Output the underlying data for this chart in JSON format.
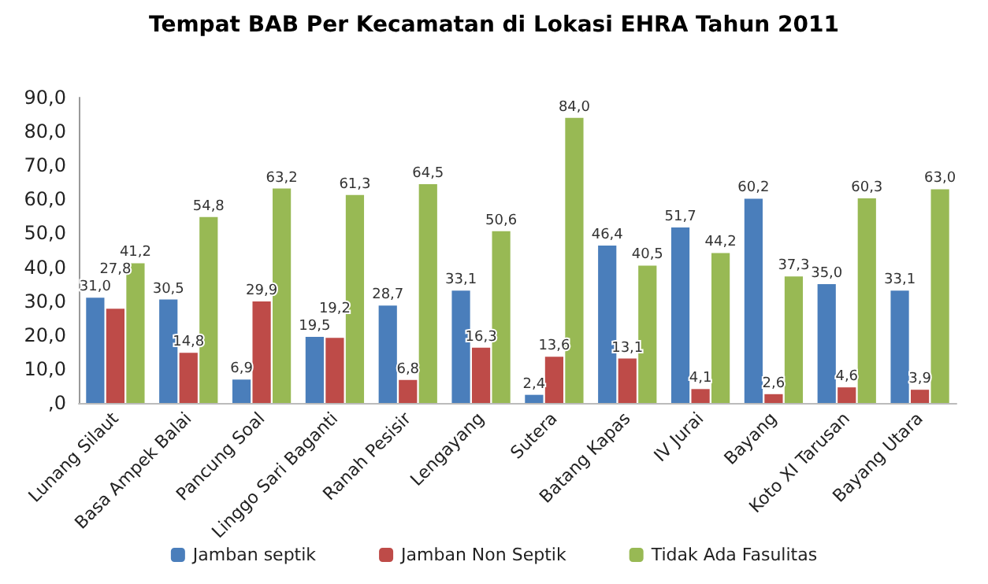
{
  "chart_data": {
    "type": "bar",
    "title": "Tempat BAB Per Kecamatan di Lokasi EHRA Tahun 2011",
    "categories": [
      "Lunang Silaut",
      "Basa Ampek Balai",
      "Pancung Soal",
      "Linggo Sari Baganti",
      "Ranah Pesisir",
      "Lengayang",
      "Sutera",
      "Batang Kapas",
      "IV Jurai",
      "Bayang",
      "Koto XI Tarusan",
      "Bayang Utara"
    ],
    "series": [
      {
        "name": "Jamban septik",
        "color": "#4a7ebb",
        "values": [
          31.0,
          30.5,
          6.9,
          19.5,
          28.7,
          33.1,
          2.4,
          46.4,
          51.7,
          60.2,
          35.0,
          33.1
        ],
        "value_labels": [
          "31,0",
          "30,5",
          "6,9",
          "19,5",
          "28,7",
          "33,1",
          "2,4",
          "46,4",
          "51,7",
          "60,2",
          "35,0",
          "33,1"
        ]
      },
      {
        "name": "Jamban Non Septik",
        "color": "#be4b48",
        "values": [
          27.8,
          14.8,
          29.9,
          19.2,
          6.8,
          16.3,
          13.6,
          13.1,
          4.1,
          2.6,
          4.6,
          3.9
        ],
        "value_labels": [
          "27,8",
          "14,8",
          "29,9",
          "19,2",
          "6,8",
          "16,3",
          "13,6",
          "13,1",
          "4,1",
          "2,6",
          "4,6",
          "3,9"
        ]
      },
      {
        "name": "Tidak Ada Fasulitas",
        "color": "#98b954",
        "values": [
          41.2,
          54.8,
          63.2,
          61.3,
          64.5,
          50.6,
          84.0,
          40.5,
          44.2,
          37.3,
          60.3,
          63.0
        ],
        "value_labels": [
          "41,2",
          "54,8",
          "63,2",
          "61,3",
          "64,5",
          "50,6",
          "84,0",
          "40,5",
          "44,2",
          "37,3",
          "60,3",
          "63,0"
        ]
      }
    ],
    "ylim": [
      0,
      90
    ],
    "yticks": [
      {
        "value": 0,
        "label": ",0"
      },
      {
        "value": 10,
        "label": "10,0"
      },
      {
        "value": 20,
        "label": "20,0"
      },
      {
        "value": 30,
        "label": "30,0"
      },
      {
        "value": 40,
        "label": "40,0"
      },
      {
        "value": 50,
        "label": "50,0"
      },
      {
        "value": 60,
        "label": "60,0"
      },
      {
        "value": 70,
        "label": "70,0"
      },
      {
        "value": 80,
        "label": "80,0"
      },
      {
        "value": 90,
        "label": "90,0"
      }
    ],
    "grid": false,
    "legend": "bottom"
  }
}
